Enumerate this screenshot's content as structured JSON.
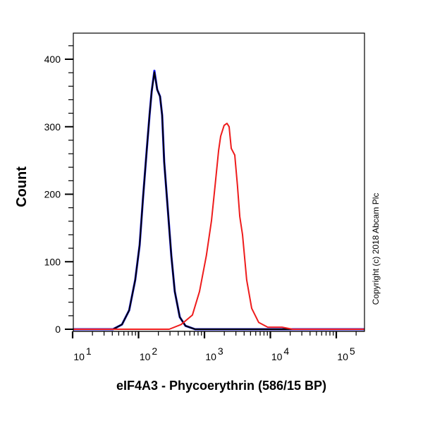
{
  "chart_data": {
    "type": "line",
    "title": "",
    "xlabel": "eIF4A3 - Phycoerythrin (586/15 BP)",
    "ylabel": "Count",
    "x_scale": "log",
    "xlim": [
      10,
      275000
    ],
    "ylim": [
      -3,
      435
    ],
    "x_tick_labels": [
      {
        "base": "10",
        "exp": "1",
        "value": 10
      },
      {
        "base": "10",
        "exp": "2",
        "value": 100
      },
      {
        "base": "10",
        "exp": "3",
        "value": 1000
      },
      {
        "base": "10",
        "exp": "4",
        "value": 10000
      },
      {
        "base": "10",
        "exp": "5",
        "value": 100000
      }
    ],
    "y_ticks": [
      0,
      100,
      200,
      300,
      400
    ],
    "grid": false,
    "annotation": "Copyright (c) 2018 Abcam Plc",
    "series": [
      {
        "color": "#1a1aff",
        "x": [
          10,
          41,
          56,
          72,
          89,
          104,
          117,
          133,
          147,
          158,
          174,
          192,
          212,
          228,
          245,
          278,
          314,
          355,
          422,
          516,
          721,
          275000
        ],
        "y": [
          0,
          0,
          7,
          28,
          73,
          125,
          195,
          265,
          317,
          352,
          383,
          355,
          345,
          317,
          248,
          178,
          109,
          56,
          18,
          5,
          0,
          0
        ]
      },
      {
        "color": "#000000",
        "x": [
          10,
          41,
          56,
          72,
          89,
          104,
          117,
          133,
          147,
          158,
          174,
          192,
          212,
          228,
          245,
          278,
          314,
          355,
          422,
          516,
          721,
          275000
        ],
        "y": [
          0,
          0,
          7,
          28,
          73,
          125,
          195,
          265,
          317,
          352,
          381,
          355,
          345,
          317,
          248,
          178,
          109,
          56,
          18,
          5,
          0,
          0
        ]
      },
      {
        "color": "#ee1c1c",
        "x": [
          10,
          292,
          443,
          657,
          841,
          1070,
          1280,
          1450,
          1640,
          1760,
          1990,
          2200,
          2370,
          2550,
          2880,
          3170,
          3430,
          3780,
          4370,
          5210,
          6660,
          9120,
          15000,
          21700,
          275000
        ],
        "y": [
          0,
          0,
          7,
          21,
          56,
          109,
          161,
          213,
          265,
          286,
          302,
          305,
          300,
          268,
          258,
          213,
          167,
          140,
          73,
          31,
          10,
          3,
          3,
          0,
          0
        ]
      }
    ]
  }
}
